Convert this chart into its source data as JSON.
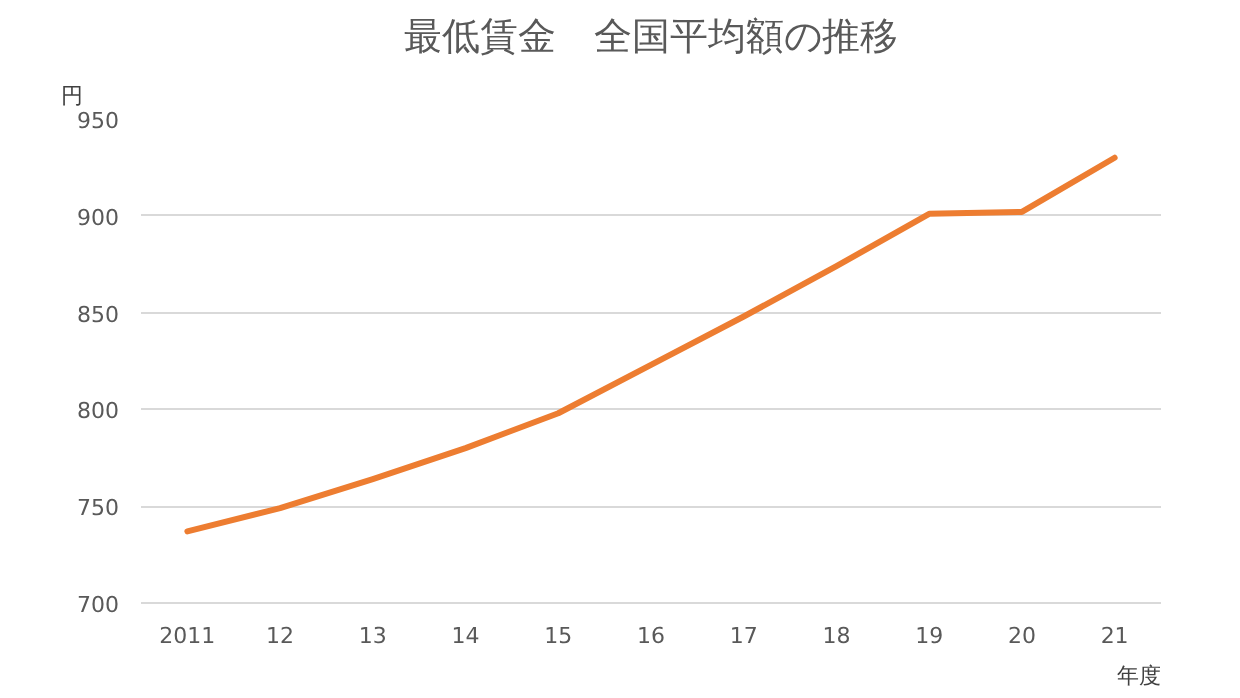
{
  "chart_data": {
    "type": "line",
    "title": "最低賃金　全国平均額の推移",
    "ylabel": "円",
    "xlabel": "年度",
    "categories": [
      "2011",
      "12",
      "13",
      "14",
      "15",
      "16",
      "17",
      "18",
      "19",
      "20",
      "21"
    ],
    "series": [
      {
        "color": "#ed7d31",
        "values": [
          737,
          749,
          764,
          780,
          798,
          823,
          848,
          874,
          901,
          902,
          930
        ]
      }
    ],
    "ylim": [
      700,
      950
    ],
    "yticks": [
      700,
      750,
      800,
      850,
      900,
      950
    ],
    "grid": "y",
    "marker": "none",
    "line_style": "solid"
  }
}
